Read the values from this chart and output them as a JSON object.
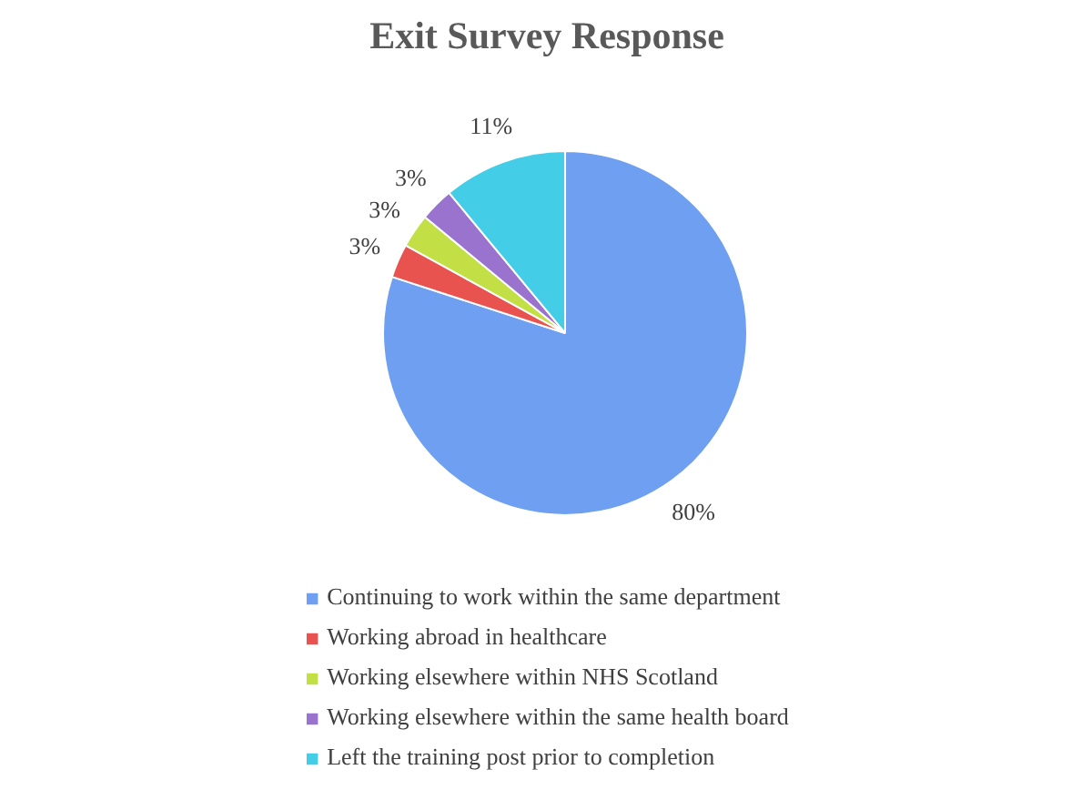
{
  "chart_data": {
    "type": "pie",
    "title": "Exit Survey Response",
    "categories": [
      "Continuing to work within the same department",
      "Working abroad in healthcare",
      "Working elsewhere within NHS Scotland",
      "Working elsewhere within the same health board",
      "Left the training post prior to completion"
    ],
    "values": [
      80,
      3,
      3,
      3,
      11
    ],
    "colors": [
      "#6f9ff0",
      "#e8534f",
      "#c2df45",
      "#9a73cf",
      "#43cde6"
    ],
    "value_labels": [
      "80%",
      "3%",
      "3%",
      "3%",
      "11%"
    ],
    "legend": "bottom"
  }
}
